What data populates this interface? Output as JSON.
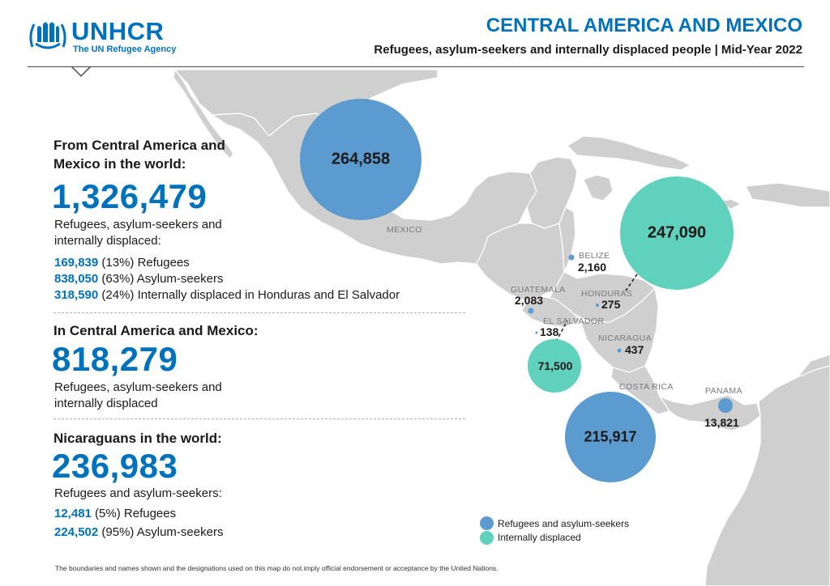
{
  "header": {
    "logo_name": "UNHCR",
    "logo_tagline": "The UN Refugee Agency",
    "title": "CENTRAL AMERICA AND MEXICO",
    "subtitle": "Refugees, asylum-seekers and internally displaced people | Mid-Year 2022"
  },
  "colors": {
    "brand_blue": "#0072bc",
    "refugee_bubble": "#5b9bd0",
    "idp_bubble": "#5fd1bd",
    "land": "#cfcfcf",
    "borders": "#ffffff"
  },
  "panel": {
    "world": {
      "heading": "From Central America and Mexico in the world:",
      "total": "1,326,479",
      "description": "Refugees, asylum-seekers and internally displaced:",
      "breakdown": [
        {
          "value": "169,839",
          "text": " (13%) Refugees"
        },
        {
          "value": "838,050",
          "text": " (63%) Asylum-seekers"
        },
        {
          "value": "318,590",
          "text": " (24%) Internally displaced in Honduras and El Salvador"
        }
      ]
    },
    "region": {
      "heading": "In Central America and Mexico:",
      "total": "818,279",
      "description": "Refugees, asylum-seekers and internally displaced"
    },
    "nicaraguans": {
      "heading": "Nicaraguans in the world:",
      "total": "236,983",
      "description": "Refugees and asylum-seekers:",
      "breakdown": [
        {
          "value": "12,481",
          "text": " (5%) Refugees"
        },
        {
          "value": "224,502",
          "text": " (95%) Asylum-seekers"
        }
      ]
    }
  },
  "map": {
    "countries": {
      "mexico": "MEXICO",
      "belize": "BELIZE",
      "guatemala": "GUATEMALA",
      "honduras": "HONDURAS",
      "el_salvador": "EL SALVADOR",
      "nicaragua": "NICARAGUA",
      "costa_rica": "COSTA RICA",
      "panama": "PANAMA"
    },
    "values": {
      "mexico_refugees": "264,858",
      "honduras_idp": "247,090",
      "el_salvador_idp": "71,500",
      "costa_rica_refugees": "215,917",
      "belize_refugees": "2,160",
      "guatemala_refugees": "2,083",
      "honduras_refugees": "275",
      "el_salvador_refugees": "138",
      "nicaragua_refugees": "437",
      "panama_refugees": "13,821"
    }
  },
  "legend": {
    "refugees": "Refugees and asylum-seekers",
    "idp": "Internally displaced"
  },
  "disclaimer": "The boundaries and names shown and the designations used on this map do not imply official endorsement or acceptance by the United Nations."
}
